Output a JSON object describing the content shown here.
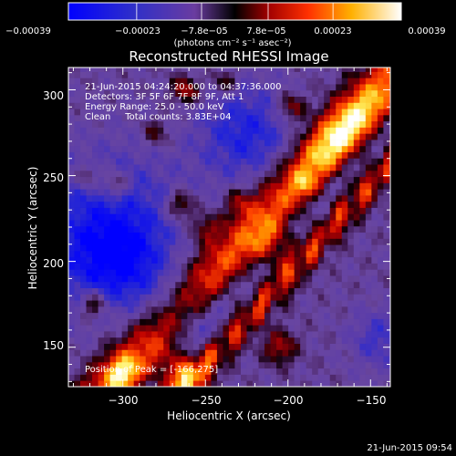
{
  "chart_data": {
    "type": "heatmap",
    "title": "Reconstructed RHESSI Image",
    "xlabel": "Heliocentric X (arcsec)",
    "ylabel": "Heliocentric Y (arcsec)",
    "xlim": [
      -333,
      -138
    ],
    "ylim": [
      127,
      313
    ],
    "x_ticks": [
      {
        "value": -300,
        "label": "−300"
      },
      {
        "value": -250,
        "label": "−250"
      },
      {
        "value": -200,
        "label": "−200"
      },
      {
        "value": -150,
        "label": "−150"
      }
    ],
    "y_ticks": [
      {
        "value": 150,
        "label": "150"
      },
      {
        "value": 200,
        "label": "200"
      },
      {
        "value": 250,
        "label": "250"
      },
      {
        "value": 300,
        "label": "300"
      }
    ],
    "colorbar": {
      "min": -0.00039,
      "max": 0.00039,
      "ticks": [
        {
          "value": -0.00039,
          "label": "−0.00039"
        },
        {
          "value": -0.00023,
          "label": "−0.00023"
        },
        {
          "value": -7.8e-05,
          "label": "−7.8e−05"
        },
        {
          "value": 7.8e-05,
          "label": "7.8e−05"
        },
        {
          "value": 0.00023,
          "label": "0.00023"
        },
        {
          "value": 0.00039,
          "label": "0.00039"
        }
      ],
      "unit_label": "(photons cm⁻² s⁻¹ asec⁻²)"
    },
    "annotations": [
      "21-Jun-2015 04:24:20.000 to 04:37:36.000",
      "Detectors: 3F 5F 6F 7F 8F 9F, Att 1",
      "Energy Range: 25.0 - 50.0 keV",
      "Clean     Total counts: 3.83E+04"
    ],
    "peak_label": "Position of Peak = [-166,275]",
    "peak": {
      "x": -166,
      "y": 275
    },
    "timestamp": "21-Jun-2015 09:54",
    "colors": {
      "background": "#000000",
      "colormap": [
        "#0000ff",
        "#3a2aa8",
        "#6a3ca0",
        "#1a0a10",
        "#8a0008",
        "#d00000",
        "#ff5a00",
        "#ffb000",
        "#ffff90",
        "#ffffff"
      ]
    }
  }
}
